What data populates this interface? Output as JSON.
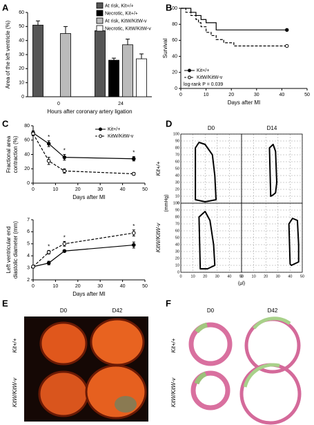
{
  "chart_data": [
    {
      "type": "bar",
      "label": "A",
      "ylabel": "Area of the left ventricle (%)",
      "xlabel": "Hours after coronary artery ligation",
      "categories": [
        "0",
        "24"
      ],
      "series": [
        {
          "name": "At risk, Kit+/+",
          "color": "#555555",
          "values": [
            51,
            47
          ],
          "errors": [
            3,
            1.5
          ]
        },
        {
          "name": "Necrotic, Kit+/+",
          "color": "#000000",
          "values": [
            null,
            26
          ],
          "errors": [
            null,
            1.5
          ]
        },
        {
          "name": "At risk, KitW/KitW-v",
          "color": "#bbbbbb",
          "values": [
            45,
            37
          ],
          "errors": [
            5,
            4
          ]
        },
        {
          "name": "Necrotic, KitW/KitW-v",
          "color": "#ffffff",
          "values": [
            null,
            27
          ],
          "errors": [
            null,
            3.5
          ]
        }
      ],
      "ylim": [
        0,
        60
      ],
      "yticks": [
        0,
        10,
        20,
        30,
        40,
        50,
        60
      ]
    },
    {
      "type": "step",
      "label": "B",
      "ylabel": "Survival",
      "xlabel": "Days after MI",
      "annotation": "log-rank P = 0.039",
      "xlim": [
        0,
        50
      ],
      "xticks": [
        0,
        10,
        20,
        30,
        40,
        50
      ],
      "ylim": [
        0,
        100
      ],
      "yticks": [
        0,
        20,
        40,
        60,
        80,
        100
      ],
      "series": [
        {
          "name": "Kit+/+",
          "color": "#000000",
          "dash": false,
          "marker": "filled",
          "x": [
            0,
            4,
            6,
            8,
            10,
            14,
            42
          ],
          "values": [
            100,
            95,
            91,
            86,
            82,
            73,
            73
          ]
        },
        {
          "name": "KitW/KitW-v",
          "color": "#000000",
          "dash": true,
          "marker": "open",
          "x": [
            0,
            2,
            4,
            6,
            7,
            8,
            10,
            12,
            14,
            17,
            21,
            42
          ],
          "values": [
            100,
            95,
            91,
            86,
            82,
            77,
            70,
            66,
            61,
            57,
            53,
            53
          ]
        }
      ]
    },
    {
      "type": "line",
      "label": "C",
      "ylabel": [
        "Fractional area",
        "contraction (%)"
      ],
      "xlabel": "Days after MI",
      "xlim": [
        0,
        50
      ],
      "xticks": [
        0,
        10,
        20,
        30,
        40,
        50
      ],
      "ylim": [
        0,
        80
      ],
      "yticks": [
        0,
        20,
        40,
        60,
        80
      ],
      "significance": [
        null,
        "*",
        "*",
        "*"
      ],
      "series": [
        {
          "name": "Kit+/+",
          "color": "#000000",
          "dash": false,
          "marker": "filled",
          "x": [
            0,
            7,
            14,
            45
          ],
          "values": [
            70,
            55,
            36,
            34
          ],
          "errors": [
            3,
            4,
            4,
            3
          ]
        },
        {
          "name": "KitW/KitW-v",
          "color": "#000000",
          "dash": true,
          "marker": "open",
          "x": [
            0,
            7,
            14,
            45
          ],
          "values": [
            69,
            31,
            17,
            13
          ],
          "errors": [
            3,
            5,
            3,
            2
          ]
        }
      ]
    },
    {
      "type": "line",
      "ylabel": [
        "Left ventricular end",
        "diastolic diameter (mm)"
      ],
      "xlabel": "Days after MI",
      "xlim": [
        0,
        50
      ],
      "xticks": [
        0,
        10,
        20,
        30,
        40,
        50
      ],
      "ylim": [
        2,
        7
      ],
      "yticks": [
        2,
        3,
        4,
        5,
        6,
        7
      ],
      "significance": [
        null,
        "*",
        "*",
        "*"
      ],
      "series": [
        {
          "color": "#000000",
          "dash": false,
          "marker": "filled",
          "x": [
            0,
            7,
            14,
            45
          ],
          "values": [
            3.1,
            3.4,
            4.4,
            4.9
          ],
          "errors": [
            0.1,
            0.15,
            0.1,
            0.25
          ]
        },
        {
          "color": "#000000",
          "dash": true,
          "marker": "open",
          "x": [
            0,
            7,
            14,
            45
          ],
          "values": [
            3.1,
            4.3,
            5.0,
            5.9
          ],
          "errors": [
            0.1,
            0.15,
            0.2,
            0.25
          ]
        }
      ]
    },
    {
      "type": "pv-loops",
      "label": "D",
      "columns": [
        "D0",
        "D14"
      ],
      "rows": [
        "Kit+/+",
        "KitW/KitW-v"
      ],
      "ylabel": "(mmHg)",
      "xlabel": "(μl)",
      "xlim": [
        0,
        50
      ],
      "xticks": [
        0,
        10,
        20,
        30,
        40,
        50
      ],
      "ylim": [
        0,
        100
      ],
      "yticks": [
        0,
        10,
        20,
        30,
        40,
        50,
        60,
        70,
        80,
        90,
        100
      ],
      "loops": [
        {
          "x": [
            12,
            12,
            15,
            20,
            26,
            28,
            29,
            20
          ],
          "values": [
            5,
            80,
            88,
            85,
            70,
            40,
            5,
            2
          ]
        },
        {
          "x": [
            24,
            23,
            26,
            28,
            29,
            28,
            26
          ],
          "values": [
            10,
            80,
            85,
            75,
            30,
            15,
            12
          ]
        },
        {
          "x": [
            16,
            15,
            20,
            24,
            27,
            28,
            22
          ],
          "values": [
            5,
            80,
            88,
            75,
            40,
            10,
            5
          ]
        },
        {
          "x": [
            40,
            39,
            42,
            46,
            47,
            47,
            41
          ],
          "values": [
            12,
            70,
            78,
            75,
            40,
            15,
            10
          ]
        }
      ]
    }
  ],
  "photos": [
    {
      "label": "E",
      "columns": [
        "D0",
        "D42"
      ],
      "rows": [
        "Kit+/+",
        "KitW/KitW-v"
      ]
    },
    {
      "label": "F",
      "columns": [
        "D0",
        "D42"
      ],
      "rows": [
        "Kit+/+",
        "KitW/KitW-v"
      ]
    }
  ]
}
